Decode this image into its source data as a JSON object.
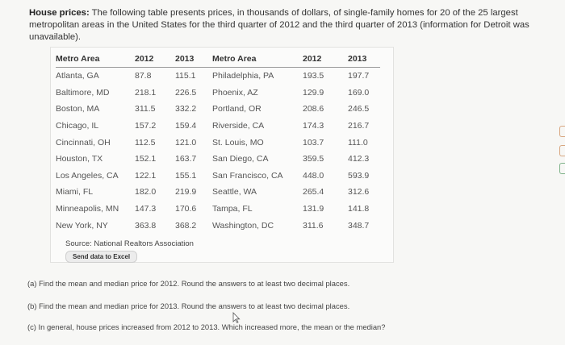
{
  "intro": {
    "label": "House prices:",
    "text": "The following table presents prices, in thousands of dollars, of single-family homes for 20 of the 25 largest metropolitan areas in the United States for the third quarter of 2012 and the third quarter of 2013 (information for Detroit was unavailable)."
  },
  "table": {
    "headers": [
      "Metro Area",
      "2012",
      "2013",
      "Metro Area",
      "2012",
      "2013"
    ],
    "rows": [
      [
        "Atlanta, GA",
        "87.8",
        "115.1",
        "Philadelphia, PA",
        "193.5",
        "197.7"
      ],
      [
        "Baltimore, MD",
        "218.1",
        "226.5",
        "Phoenix, AZ",
        "129.9",
        "169.0"
      ],
      [
        "Boston, MA",
        "311.5",
        "332.2",
        "Portland, OR",
        "208.6",
        "246.5"
      ],
      [
        "Chicago, IL",
        "157.2",
        "159.4",
        "Riverside, CA",
        "174.3",
        "216.7"
      ],
      [
        "Cincinnati, OH",
        "112.5",
        "121.0",
        "St. Louis, MO",
        "103.7",
        "111.0"
      ],
      [
        "Houston, TX",
        "152.1",
        "163.7",
        "San Diego, CA",
        "359.5",
        "412.3"
      ],
      [
        "Los Angeles, CA",
        "122.1",
        "155.1",
        "San Francisco, CA",
        "448.0",
        "593.9"
      ],
      [
        "Miami, FL",
        "182.0",
        "219.9",
        "Seattle, WA",
        "265.4",
        "312.6"
      ],
      [
        "Minneapolis, MN",
        "147.3",
        "170.6",
        "Tampa, FL",
        "131.9",
        "141.8"
      ],
      [
        "New York, NY",
        "363.8",
        "368.2",
        "Washington, DC",
        "311.6",
        "348.7"
      ]
    ],
    "source": "Source: National Realtors Association",
    "send_button": "Send data to Excel"
  },
  "questions": {
    "a": "(a) Find the mean and median price for 2012. Round the answers to at least two decimal places.",
    "b": "(b) Find the mean and median price for 2013. Round the answers to at least two decimal places.",
    "c": "(c) In general, house prices increased from 2012 to 2013. Which increased more, the mean or the median?"
  }
}
